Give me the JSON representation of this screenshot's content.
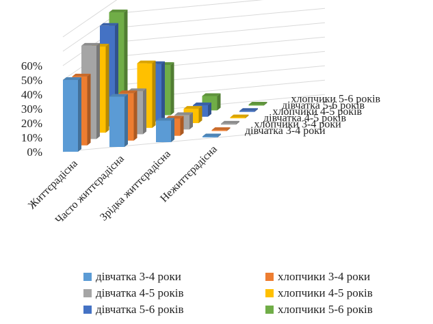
{
  "chart_data": {
    "type": "bar",
    "subtype": "3d-clustered-column",
    "categories": [
      "Життєрадісна",
      "Часто життєрадісна",
      "Зрідка життєрадісна",
      "Нежиттєрадісна"
    ],
    "series": [
      {
        "name": "дівчатка 3-4 роки",
        "color": "#5B9BD5",
        "values": [
          50,
          35,
          15,
          0
        ]
      },
      {
        "name": "хлопчики 3-4 роки",
        "color": "#ED7D31",
        "values": [
          48,
          33,
          12,
          0
        ]
      },
      {
        "name": "дівчатка 4-5 років",
        "color": "#A5A5A5",
        "values": [
          65,
          30,
          10,
          0
        ]
      },
      {
        "name": "хлопчики 4-5 років",
        "color": "#FFC000",
        "values": [
          60,
          45,
          10,
          0
        ]
      },
      {
        "name": "дівчатка 5-6 років",
        "color": "#4472C4",
        "values": [
          70,
          40,
          8,
          0
        ]
      },
      {
        "name": "хлопчики 5-6 років",
        "color": "#70AD47",
        "values": [
          75,
          35,
          10,
          0
        ]
      }
    ],
    "yticks": [
      "0%",
      "10%",
      "20%",
      "30%",
      "40%",
      "50%",
      "60%"
    ],
    "ylim": [
      0,
      80
    ],
    "grid": true,
    "legend_position": "bottom"
  }
}
